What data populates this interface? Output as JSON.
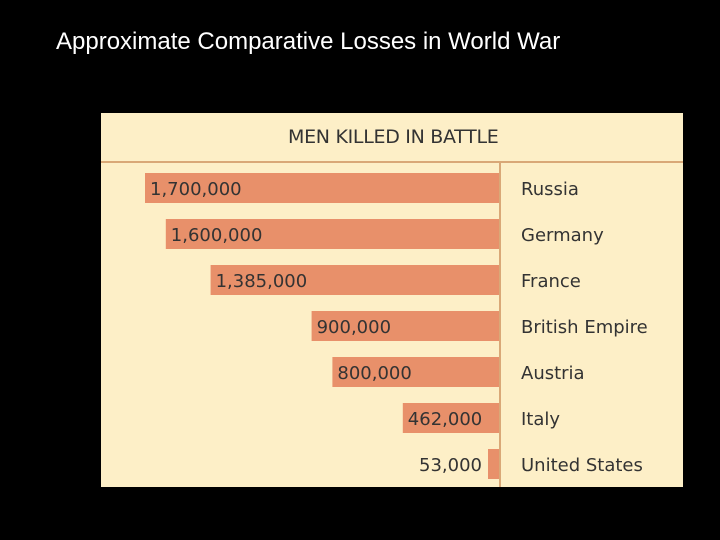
{
  "slide": {
    "title": "Approximate Comparative Losses in World War"
  },
  "colors": {
    "background": "#000000",
    "panel": "#fdefc7",
    "bar": "#e8906a",
    "divider": "#d9a877",
    "text": "#333333"
  },
  "chart_data": {
    "type": "bar",
    "orientation": "horizontal",
    "title": "MEN KILLED IN BATTLE",
    "categories": [
      "Russia",
      "Germany",
      "France",
      "British Empire",
      "Austria",
      "Italy",
      "United States"
    ],
    "values": [
      1700000,
      1600000,
      1385000,
      900000,
      800000,
      462000,
      53000
    ],
    "value_labels": [
      "1,700,000",
      "1,600,000",
      "1,385,000",
      "900,000",
      "800,000",
      "462,000",
      "53,000"
    ],
    "grid": false,
    "legend": "none"
  }
}
